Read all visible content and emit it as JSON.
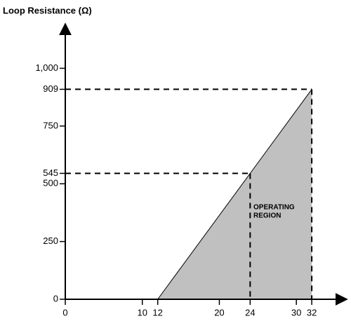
{
  "chart_data": {
    "type": "area",
    "y_label": "Loop Resistance (Ω)",
    "x": [
      12,
      24,
      32
    ],
    "values": [
      0,
      545,
      909
    ],
    "color": "#c0c0c0",
    "xlim": [
      0,
      36
    ],
    "ylim": [
      0,
      1150
    ],
    "xticks": [
      0,
      10,
      12,
      20,
      24,
      30,
      32
    ],
    "yticks": [
      0,
      250,
      500,
      545,
      750,
      909,
      {
        "value": 1000,
        "label": "1,000"
      }
    ],
    "annotation": [
      "OPERATING",
      "REGION"
    ]
  }
}
